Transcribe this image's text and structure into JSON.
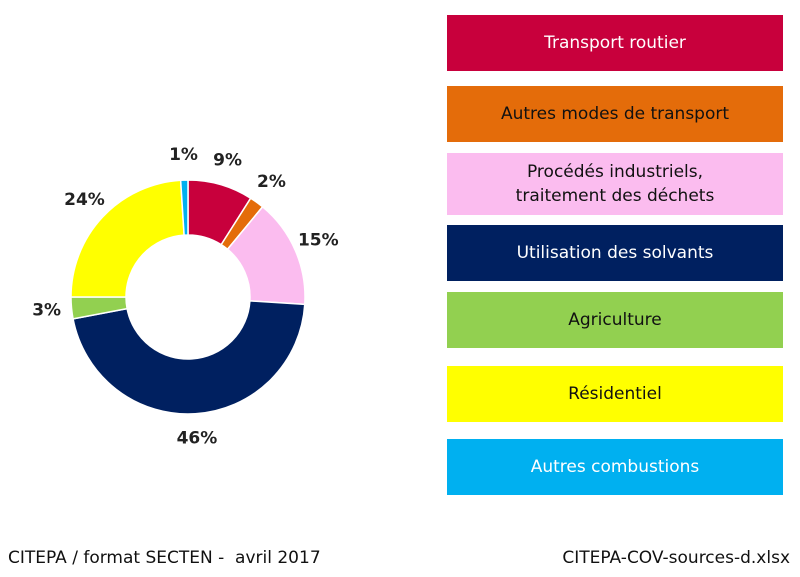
{
  "chart_data": {
    "type": "donut",
    "series": [
      {
        "name": "Transport routier",
        "color": "#c8003c",
        "values": [
          9
        ],
        "value_labels": [
          "9%"
        ]
      },
      {
        "name": "Autres modes de transport",
        "color": "#e46c0a",
        "values": [
          2
        ],
        "value_labels": [
          "2%"
        ]
      },
      {
        "name": "Procédés industriels, traitement des déchets",
        "color": "#fbbcef",
        "values": [
          15
        ],
        "value_labels": [
          "15%"
        ]
      },
      {
        "name": "Utilisation des solvants",
        "color": "#002060",
        "values": [
          46
        ],
        "value_labels": [
          "46%"
        ]
      },
      {
        "name": "Agriculture",
        "color": "#92d050",
        "values": [
          3
        ],
        "value_labels": [
          "3%"
        ]
      },
      {
        "name": "Résidentiel",
        "color": "#ffff00",
        "values": [
          24
        ],
        "value_labels": [
          "24%"
        ]
      },
      {
        "name": "Autres combustions",
        "color": "#00b0f0",
        "values": [
          1
        ],
        "value_labels": [
          "1%"
        ]
      }
    ],
    "footer_left": "CITEPA / format SECTEN -  avril 2017",
    "footer_right": "CITEPA-COV-sources-d.xlsx"
  }
}
